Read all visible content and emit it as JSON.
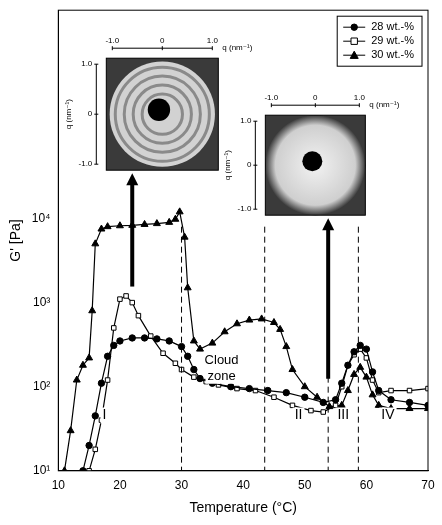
{
  "chart_data": {
    "type": "line",
    "x_label": "Temperature (°C)",
    "y_label": "G' [Pa]",
    "log": "y",
    "grid": false,
    "legend": "top right",
    "xlim": [
      10,
      70
    ],
    "xticks": [
      10,
      20,
      30,
      40,
      50,
      60,
      70
    ],
    "ylim": [
      10,
      3000000
    ],
    "yticks": [
      {
        "value": 10,
        "label": "10¹"
      },
      {
        "value": 100,
        "label": "10²"
      },
      {
        "value": 1000,
        "label": "10³"
      },
      {
        "value": 10000,
        "label": "10⁴"
      }
    ],
    "series": [
      {
        "name": "28 wt.-%",
        "color": "#000000",
        "marker": "circle",
        "x": [
          14,
          15,
          16,
          17,
          18,
          19,
          20,
          22,
          24,
          26,
          28,
          30,
          31,
          32,
          33,
          35,
          38,
          41,
          44,
          47,
          50,
          53,
          55,
          56,
          57,
          58,
          59,
          60,
          61,
          62,
          64,
          67,
          70
        ],
        "values": [
          10,
          20,
          45,
          110,
          230,
          310,
          350,
          380,
          380,
          370,
          350,
          300,
          230,
          160,
          125,
          110,
          100,
          95,
          90,
          85,
          75,
          65,
          70,
          110,
          180,
          260,
          310,
          280,
          150,
          90,
          70,
          65,
          60
        ]
      },
      {
        "name": "29 wt.-%",
        "color": "#000000",
        "marker": "open_square",
        "x": [
          15,
          16,
          17,
          18,
          19,
          20,
          21,
          22,
          23,
          25,
          27,
          29,
          30,
          32,
          34,
          36,
          39,
          42,
          45,
          48,
          51,
          53,
          55,
          56,
          57,
          58,
          59,
          60,
          61,
          62,
          64,
          67,
          70
        ],
        "values": [
          10,
          18,
          40,
          120,
          500,
          1100,
          1200,
          1000,
          700,
          400,
          250,
          190,
          160,
          130,
          115,
          105,
          95,
          90,
          75,
          60,
          52,
          50,
          60,
          100,
          180,
          240,
          280,
          220,
          120,
          85,
          90,
          90,
          95
        ]
      },
      {
        "name": "30 wt.-%",
        "color": "#000000",
        "marker": "triangle",
        "x": [
          11,
          12,
          13,
          14,
          15,
          15.5,
          16,
          17,
          18,
          20,
          22,
          24,
          26,
          28,
          29,
          29.7,
          30.5,
          31,
          32,
          33,
          35,
          37,
          39,
          41,
          43,
          45,
          46,
          47,
          48,
          50,
          52,
          54,
          56,
          57,
          58,
          59,
          60,
          61,
          62,
          64,
          67,
          70
        ],
        "values": [
          10,
          30,
          120,
          180,
          220,
          800,
          5000,
          7500,
          8000,
          8200,
          8300,
          8500,
          8700,
          9000,
          9800,
          12000,
          6000,
          1500,
          350,
          280,
          330,
          450,
          560,
          620,
          640,
          580,
          480,
          300,
          160,
          100,
          75,
          58,
          60,
          90,
          140,
          170,
          130,
          80,
          60,
          55,
          55,
          55
        ]
      }
    ],
    "boundaries": [
      30,
      43.5,
      53.8,
      58.7
    ],
    "regions": [
      {
        "label": "I",
        "x": 17.5
      },
      {
        "label": "Cloud zone",
        "x": 36.5
      },
      {
        "label": "II",
        "x": 49
      },
      {
        "label": "III",
        "x": 56.25
      },
      {
        "label": "IV",
        "x": 63.5
      }
    ],
    "insets": [
      {
        "ticks": [
          {
            "value": -1,
            "label": "-1.0"
          },
          0,
          {
            "value": 1,
            "label": "1.0"
          }
        ],
        "axis_label": "q (nm⁻¹)"
      },
      {
        "ticks": [
          {
            "value": -1,
            "label": "-1.0"
          },
          0,
          {
            "value": 1,
            "label": "1.0"
          }
        ],
        "axis_label": "q (nm⁻¹)"
      }
    ]
  }
}
